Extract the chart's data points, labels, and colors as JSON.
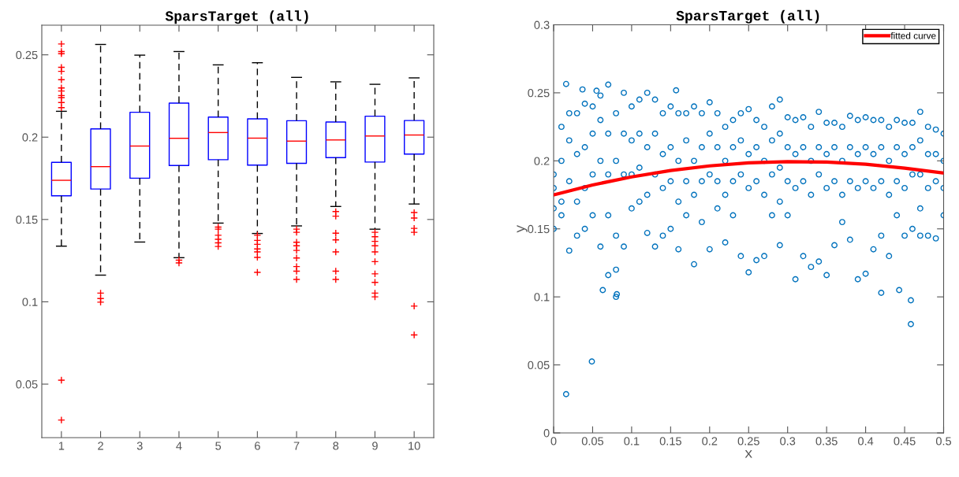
{
  "chart_data": [
    {
      "type": "box",
      "title": "SparsTarget (all)",
      "categories": [
        "1",
        "2",
        "3",
        "4",
        "5",
        "6",
        "7",
        "8",
        "9",
        "10"
      ],
      "ylim": [
        0.0175,
        0.268
      ],
      "yticks": [
        0.05,
        0.1,
        0.15,
        0.2,
        0.25
      ],
      "grid": false,
      "series": [
        {
          "color": "#0000ff",
          "boxes": [
            {
              "low": 0.1338,
              "q1": 0.1644,
              "median": 0.1738,
              "q3": 0.1847,
              "high": 0.2157,
              "outliers": [
                0.2566,
                0.252,
                0.2507,
                0.2424,
                0.24,
                0.2349,
                0.2299,
                0.228,
                0.2253,
                0.224,
                0.221,
                0.2179,
                0.0524,
                0.0282
              ]
            },
            {
              "low": 0.1162,
              "q1": 0.1685,
              "median": 0.1821,
              "q3": 0.205,
              "high": 0.2563,
              "outliers": [
                0.1053,
                0.102,
                0.0998
              ]
            },
            {
              "low": 0.1363,
              "q1": 0.1751,
              "median": 0.1946,
              "q3": 0.2151,
              "high": 0.2498
            },
            {
              "low": 0.1268,
              "q1": 0.1828,
              "median": 0.1993,
              "q3": 0.2207,
              "high": 0.252,
              "outliers": [
                0.1253,
                0.1236
              ]
            },
            {
              "low": 0.1478,
              "q1": 0.1863,
              "median": 0.2028,
              "q3": 0.2122,
              "high": 0.2439,
              "outliers": [
                0.1454,
                0.1441,
                0.1404,
                0.138,
                0.1358,
                0.1336
              ]
            },
            {
              "low": 0.1415,
              "q1": 0.183,
              "median": 0.1994,
              "q3": 0.2111,
              "high": 0.2452,
              "outliers": [
                0.1404,
                0.1373,
                0.1349,
                0.1321,
                0.1303,
                0.127,
                0.1179
              ]
            },
            {
              "low": 0.1461,
              "q1": 0.1841,
              "median": 0.1976,
              "q3": 0.21,
              "high": 0.2363,
              "outliers": [
                0.1441,
                0.1422,
                0.1362,
                0.134,
                0.1312,
                0.1266,
                0.1214,
                0.1186,
                0.1136
              ]
            },
            {
              "low": 0.1579,
              "q1": 0.1876,
              "median": 0.1983,
              "q3": 0.2092,
              "high": 0.2336,
              "outliers": [
                0.1548,
                0.152,
                0.1417,
                0.1376,
                0.1303,
                0.1186,
                0.1136
              ]
            },
            {
              "low": 0.1441,
              "q1": 0.1849,
              "median": 0.2007,
              "q3": 0.2127,
              "high": 0.2321,
              "outliers": [
                0.1422,
                0.1395,
                0.1367,
                0.134,
                0.1303,
                0.1244,
                0.117,
                0.1118,
                0.1053,
                0.103
              ]
            },
            {
              "low": 0.1594,
              "q1": 0.1897,
              "median": 0.2013,
              "q3": 0.2101,
              "high": 0.236,
              "outliers": [
                0.1542,
                0.1509,
                0.1446,
                0.1422,
                0.0974,
                0.0799
              ]
            }
          ]
        }
      ]
    },
    {
      "type": "scatter",
      "title": "SparsTarget (all)",
      "xlabel": "x",
      "ylabel": "y",
      "xlim": [
        0,
        0.5
      ],
      "ylim": [
        0,
        0.3
      ],
      "xticks": [
        0,
        0.05,
        0.1,
        0.15,
        0.2,
        0.25,
        0.3,
        0.35,
        0.4,
        0.45,
        0.5
      ],
      "yticks": [
        0,
        0.05,
        0.1,
        0.15,
        0.2,
        0.25,
        0.3
      ],
      "grid": false,
      "legend": "top right",
      "series": [
        {
          "type": "scatter",
          "color": "#0072bd",
          "marker": "circle",
          "x": [
            0.016,
            0.049,
            0.063,
            0.08,
            0.081,
            0.458,
            0.458,
            0.42,
            0.443,
            0.016,
            0.07,
            0.037,
            0.055,
            0.157,
            0.29,
            0.47,
            0.0,
            0.0,
            0.0,
            0.0,
            0.01,
            0.01,
            0.01,
            0.01,
            0.02,
            0.02,
            0.02,
            0.02,
            0.03,
            0.03,
            0.03,
            0.03,
            0.04,
            0.04,
            0.04,
            0.04,
            0.05,
            0.05,
            0.05,
            0.05,
            0.06,
            0.06,
            0.06,
            0.06,
            0.07,
            0.07,
            0.07,
            0.07,
            0.08,
            0.08,
            0.08,
            0.08,
            0.09,
            0.09,
            0.09,
            0.09,
            0.1,
            0.1,
            0.1,
            0.1,
            0.11,
            0.11,
            0.11,
            0.11,
            0.12,
            0.12,
            0.12,
            0.12,
            0.13,
            0.13,
            0.13,
            0.13,
            0.14,
            0.14,
            0.14,
            0.14,
            0.15,
            0.15,
            0.15,
            0.15,
            0.16,
            0.16,
            0.16,
            0.16,
            0.17,
            0.17,
            0.17,
            0.17,
            0.18,
            0.18,
            0.18,
            0.18,
            0.19,
            0.19,
            0.19,
            0.19,
            0.2,
            0.2,
            0.2,
            0.2,
            0.21,
            0.21,
            0.21,
            0.21,
            0.22,
            0.22,
            0.22,
            0.22,
            0.23,
            0.23,
            0.23,
            0.23,
            0.24,
            0.24,
            0.24,
            0.24,
            0.25,
            0.25,
            0.25,
            0.25,
            0.26,
            0.26,
            0.26,
            0.26,
            0.27,
            0.27,
            0.27,
            0.27,
            0.28,
            0.28,
            0.28,
            0.28,
            0.29,
            0.29,
            0.29,
            0.29,
            0.3,
            0.3,
            0.3,
            0.3,
            0.31,
            0.31,
            0.31,
            0.31,
            0.32,
            0.32,
            0.32,
            0.32,
            0.33,
            0.33,
            0.33,
            0.33,
            0.34,
            0.34,
            0.34,
            0.34,
            0.35,
            0.35,
            0.35,
            0.35,
            0.36,
            0.36,
            0.36,
            0.36,
            0.37,
            0.37,
            0.37,
            0.37,
            0.38,
            0.38,
            0.38,
            0.38,
            0.39,
            0.39,
            0.39,
            0.39,
            0.4,
            0.4,
            0.4,
            0.4,
            0.41,
            0.41,
            0.41,
            0.41,
            0.42,
            0.42,
            0.42,
            0.42,
            0.43,
            0.43,
            0.43,
            0.43,
            0.44,
            0.44,
            0.44,
            0.44,
            0.45,
            0.45,
            0.45,
            0.45,
            0.46,
            0.46,
            0.46,
            0.46,
            0.47,
            0.47,
            0.47,
            0.47,
            0.48,
            0.48,
            0.48,
            0.48,
            0.49,
            0.49,
            0.49,
            0.49,
            0.5,
            0.5,
            0.5,
            0.5
          ],
          "values": [
            0.0285,
            0.0525,
            0.105,
            0.1,
            0.102,
            0.0975,
            0.08,
            0.103,
            0.105,
            0.2565,
            0.256,
            0.2525,
            0.2515,
            0.2518,
            0.245,
            0.236,
            0.165,
            0.18,
            0.15,
            0.19,
            0.225,
            0.2,
            0.17,
            0.16,
            0.235,
            0.215,
            0.185,
            0.134,
            0.235,
            0.205,
            0.17,
            0.145,
            0.242,
            0.21,
            0.18,
            0.15,
            0.24,
            0.22,
            0.19,
            0.16,
            0.248,
            0.23,
            0.2,
            0.137,
            0.22,
            0.19,
            0.16,
            0.116,
            0.235,
            0.2,
            0.145,
            0.12,
            0.25,
            0.22,
            0.19,
            0.137,
            0.24,
            0.215,
            0.19,
            0.165,
            0.245,
            0.22,
            0.195,
            0.17,
            0.25,
            0.21,
            0.175,
            0.147,
            0.245,
            0.22,
            0.19,
            0.137,
            0.235,
            0.205,
            0.18,
            0.145,
            0.24,
            0.21,
            0.185,
            0.15,
            0.235,
            0.2,
            0.17,
            0.135,
            0.235,
            0.215,
            0.185,
            0.16,
            0.24,
            0.2,
            0.175,
            0.124,
            0.235,
            0.21,
            0.185,
            0.155,
            0.243,
            0.22,
            0.19,
            0.135,
            0.235,
            0.21,
            0.185,
            0.165,
            0.225,
            0.2,
            0.175,
            0.14,
            0.23,
            0.21,
            0.185,
            0.16,
            0.235,
            0.215,
            0.19,
            0.13,
            0.238,
            0.205,
            0.18,
            0.118,
            0.23,
            0.21,
            0.185,
            0.127,
            0.225,
            0.2,
            0.175,
            0.13,
            0.24,
            0.215,
            0.19,
            0.16,
            0.22,
            0.195,
            0.17,
            0.138,
            0.232,
            0.21,
            0.185,
            0.16,
            0.23,
            0.205,
            0.18,
            0.113,
            0.232,
            0.21,
            0.185,
            0.13,
            0.225,
            0.2,
            0.175,
            0.122,
            0.236,
            0.21,
            0.19,
            0.126,
            0.228,
            0.205,
            0.18,
            0.116,
            0.228,
            0.21,
            0.185,
            0.138,
            0.225,
            0.2,
            0.175,
            0.155,
            0.233,
            0.21,
            0.185,
            0.142,
            0.23,
            0.205,
            0.18,
            0.113,
            0.232,
            0.21,
            0.185,
            0.117,
            0.23,
            0.205,
            0.18,
            0.135,
            0.23,
            0.21,
            0.185,
            0.145,
            0.225,
            0.2,
            0.175,
            0.13,
            0.23,
            0.21,
            0.185,
            0.16,
            0.228,
            0.205,
            0.18,
            0.145,
            0.228,
            0.21,
            0.19,
            0.15,
            0.215,
            0.19,
            0.165,
            0.145,
            0.225,
            0.205,
            0.18,
            0.145,
            0.223,
            0.205,
            0.185,
            0.143,
            0.22,
            0.2,
            0.18,
            0.16
          ]
        },
        {
          "type": "line",
          "name": "fitted curve",
          "color": "#ff0000",
          "marker": "none",
          "line_style": "solid",
          "x": [
            0,
            0.05,
            0.1,
            0.15,
            0.2,
            0.25,
            0.3,
            0.35,
            0.4,
            0.45,
            0.5
          ],
          "values": [
            0.175,
            0.1823,
            0.1882,
            0.1929,
            0.1963,
            0.1985,
            0.1994,
            0.1991,
            0.1975,
            0.1946,
            0.191
          ]
        }
      ]
    }
  ]
}
